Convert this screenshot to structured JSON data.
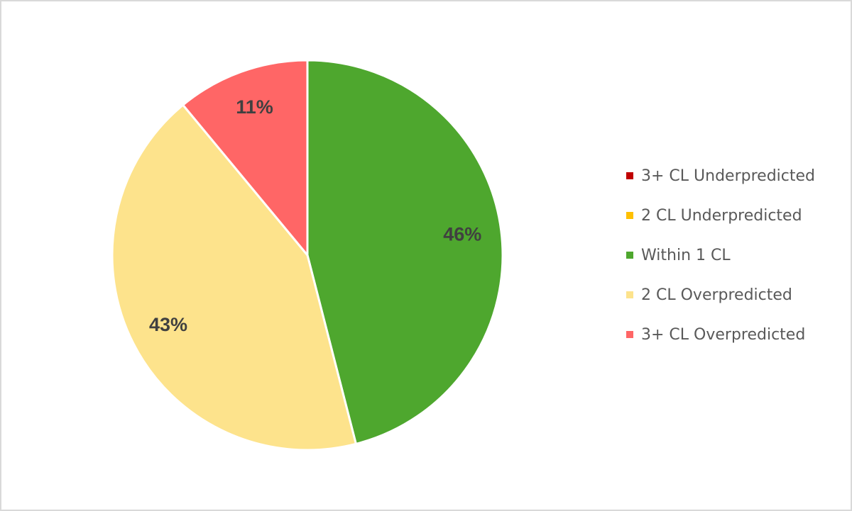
{
  "chart_data": {
    "type": "pie",
    "categories": [
      "3+ CL Underpredicted",
      "2 CL Underpredicted",
      "Within 1 CL",
      "2 CL Overpredicted",
      "3+ CL Overpredicted"
    ],
    "values": [
      0,
      0,
      46,
      43,
      11
    ],
    "value_labels": [
      null,
      null,
      "46%",
      "43%",
      "11%"
    ],
    "colors": [
      "#c00000",
      "#ffc000",
      "#4ea72e",
      "#fde38c",
      "#ff6666"
    ],
    "legend": "right"
  }
}
